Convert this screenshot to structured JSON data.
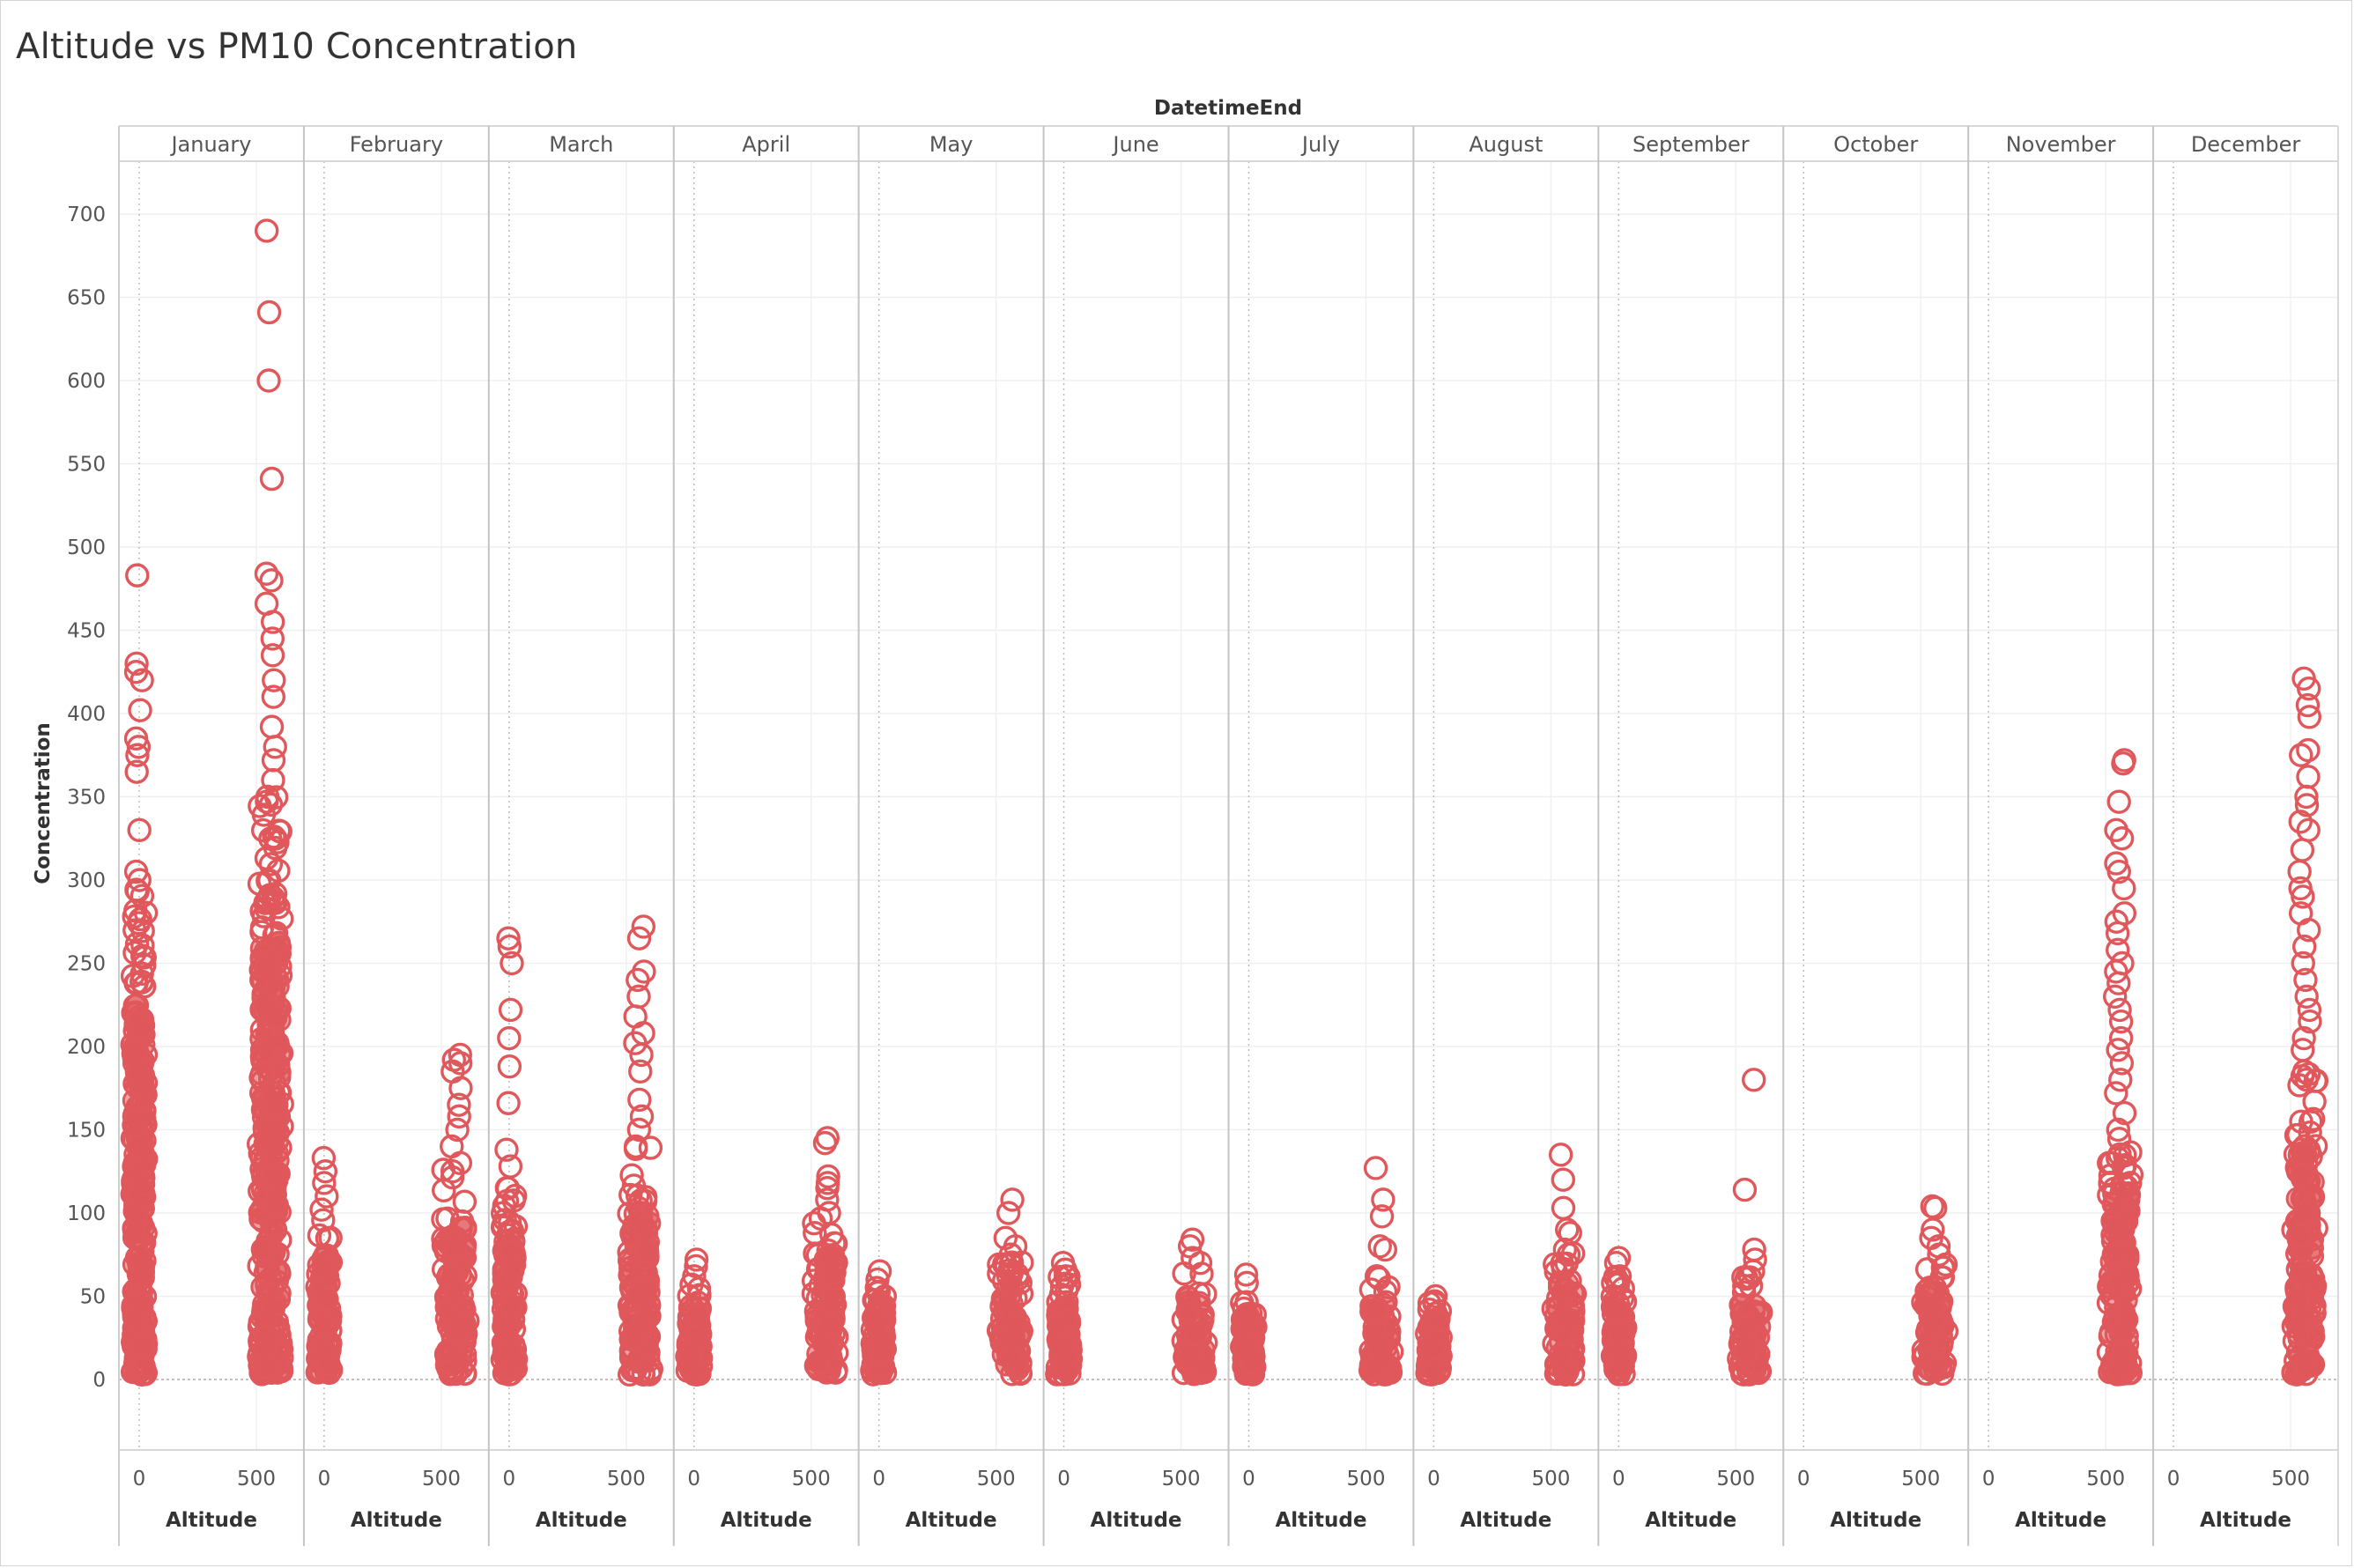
{
  "title": "Altitude vs PM10 Concentration",
  "column_header": "DatetimeEnd",
  "y_axis_title": "Concentration",
  "x_axis_title": "Altitude",
  "mark_color": "#e0585b",
  "chart_data": {
    "type": "scatter",
    "title": "Altitude vs PM10 Concentration",
    "facet_by": "DatetimeEnd",
    "xlabel": "Altitude",
    "ylabel": "Concentration",
    "ylim": [
      -40,
      720
    ],
    "y_ticks": [
      0,
      50,
      100,
      150,
      200,
      250,
      300,
      350,
      400,
      450,
      500,
      550,
      600,
      650,
      700
    ],
    "x_ticks": [
      0,
      500
    ],
    "xlim": [
      -80,
      700
    ],
    "marker": "open-circle",
    "grid": true,
    "panels": [
      {
        "month": "January",
        "clusters": [
          {
            "x": 0,
            "y_max": 483,
            "spread": 14,
            "outliers": [
              483,
              430,
              425,
              420,
              402,
              385,
              380,
              375,
              365,
              330,
              305,
              300
            ]
          },
          {
            "x": 560,
            "y_max": 690,
            "spread": 55,
            "outliers": [
              690,
              641,
              600,
              541,
              484,
              480,
              466,
              455,
              445,
              435,
              420,
              410,
              392,
              380,
              372,
              360,
              350
            ]
          }
        ]
      },
      {
        "month": "February",
        "clusters": [
          {
            "x": 0,
            "y_max": 133,
            "spread": 14,
            "outliers": [
              133,
              125,
              118,
              110,
              102
            ]
          },
          {
            "x": 560,
            "y_max": 195,
            "spread": 60,
            "outliers": [
              195,
              192,
              190,
              185,
              175,
              165,
              158,
              150,
              140,
              130
            ]
          }
        ]
      },
      {
        "month": "March",
        "clusters": [
          {
            "x": 0,
            "y_max": 265,
            "spread": 14,
            "outliers": [
              265,
              260,
              250,
              222,
              205,
              188,
              166,
              138,
              128,
              115
            ]
          },
          {
            "x": 560,
            "y_max": 272,
            "spread": 55,
            "outliers": [
              272,
              265,
              245,
              240,
              230,
              218,
              208,
              202,
              195,
              185,
              168,
              158,
              150,
              140
            ]
          }
        ]
      },
      {
        "month": "April",
        "clusters": [
          {
            "x": 0,
            "y_max": 72,
            "spread": 14,
            "outliers": [
              72,
              68,
              62
            ]
          },
          {
            "x": 560,
            "y_max": 145,
            "spread": 55,
            "outliers": [
              145,
              142,
              122,
              118,
              115,
              108,
              100
            ]
          }
        ]
      },
      {
        "month": "May",
        "clusters": [
          {
            "x": 0,
            "y_max": 65,
            "spread": 14,
            "outliers": [
              65,
              60,
              55
            ]
          },
          {
            "x": 560,
            "y_max": 108,
            "spread": 55,
            "outliers": [
              108,
              100,
              85,
              80,
              75
            ]
          }
        ]
      },
      {
        "month": "June",
        "clusters": [
          {
            "x": 0,
            "y_max": 70,
            "spread": 14,
            "outliers": [
              70,
              66,
              62
            ]
          },
          {
            "x": 560,
            "y_max": 84,
            "spread": 55,
            "outliers": [
              84,
              80,
              73,
              70
            ]
          }
        ]
      },
      {
        "month": "July",
        "clusters": [
          {
            "x": 0,
            "y_max": 63,
            "spread": 14,
            "outliers": [
              63,
              58
            ]
          },
          {
            "x": 560,
            "y_max": 127,
            "spread": 55,
            "outliers": [
              127,
              108,
              98,
              80,
              78,
              62
            ]
          }
        ]
      },
      {
        "month": "August",
        "clusters": [
          {
            "x": 0,
            "y_max": 50,
            "spread": 14,
            "outliers": [
              50,
              47
            ]
          },
          {
            "x": 560,
            "y_max": 135,
            "spread": 55,
            "outliers": [
              135,
              120,
              103,
              90,
              88,
              78
            ]
          }
        ]
      },
      {
        "month": "September",
        "clusters": [
          {
            "x": 0,
            "y_max": 73,
            "spread": 14,
            "outliers": [
              73,
              70,
              62
            ]
          },
          {
            "x": 560,
            "y_max": 180,
            "spread": 55,
            "outliers": [
              180,
              114,
              78,
              72,
              65
            ]
          }
        ]
      },
      {
        "month": "October",
        "clusters": [
          {
            "x": 560,
            "y_max": 104,
            "spread": 55,
            "outliers": [
              104,
              103,
              90,
              85,
              80,
              75
            ]
          }
        ]
      },
      {
        "month": "November",
        "clusters": [
          {
            "x": 560,
            "y_max": 372,
            "spread": 55,
            "outliers": [
              372,
              370,
              347,
              330,
              325,
              310,
              305,
              295,
              280,
              275,
              268,
              258,
              250,
              245,
              238,
              230,
              222,
              215,
              205,
              198,
              190,
              180,
              172,
              160,
              150
            ]
          }
        ]
      },
      {
        "month": "December",
        "clusters": [
          {
            "x": 560,
            "y_max": 421,
            "spread": 55,
            "outliers": [
              421,
              415,
              405,
              398,
              378,
              375,
              362,
              350,
              345,
              335,
              330,
              318,
              305,
              295,
              290,
              280,
              270,
              260,
              250,
              240,
              230,
              222,
              215,
              205,
              198,
              185
            ]
          }
        ]
      }
    ]
  }
}
